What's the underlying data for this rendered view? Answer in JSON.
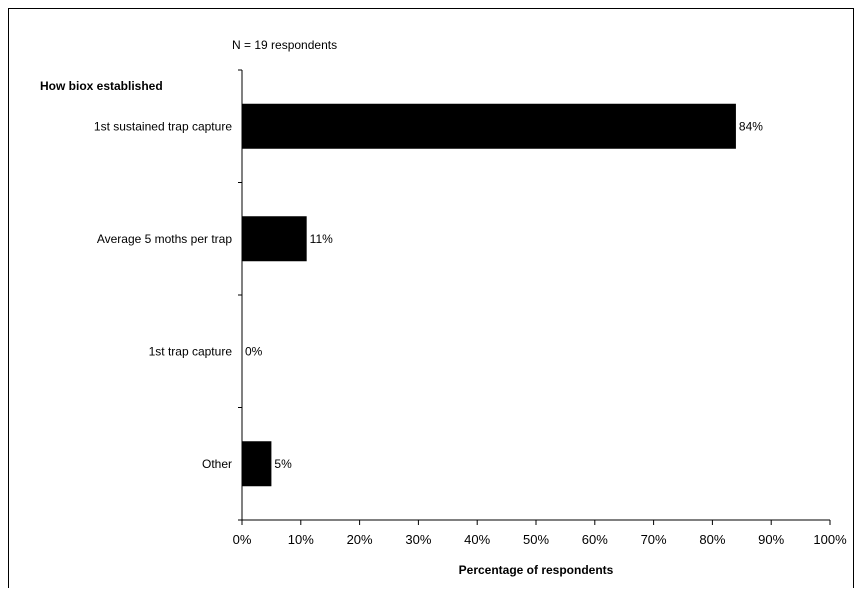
{
  "chart_data": {
    "type": "bar",
    "orientation": "horizontal",
    "annotation": "N = 19 respondents",
    "category_axis_title": "How biox established",
    "xlabel": "Percentage of respondents",
    "categories": [
      "1st sustained trap capture",
      "Average 5 moths per trap",
      "1st trap capture",
      "Other"
    ],
    "values": [
      84,
      11,
      0,
      5
    ],
    "data_labels": [
      "84%",
      "11%",
      "0%",
      "5%"
    ],
    "xlim": [
      0,
      100
    ],
    "x_ticks": [
      0,
      10,
      20,
      30,
      40,
      50,
      60,
      70,
      80,
      90,
      100
    ],
    "x_tick_labels": [
      "0%",
      "10%",
      "20%",
      "30%",
      "40%",
      "50%",
      "60%",
      "70%",
      "80%",
      "90%",
      "100%"
    ],
    "grid": false,
    "legend": "none",
    "colors": {
      "bar": "#000000",
      "axis": "#000000",
      "background": "#ffffff"
    }
  }
}
